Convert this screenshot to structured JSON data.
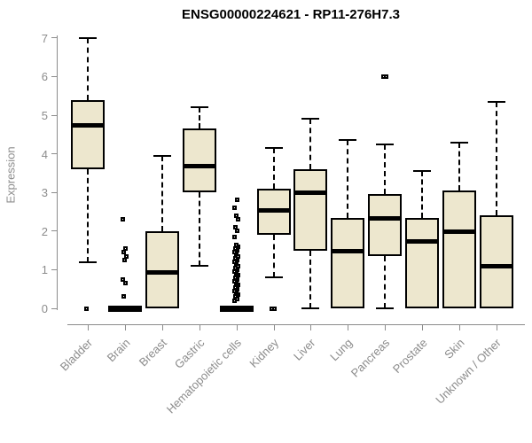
{
  "chart_data": {
    "type": "boxplot",
    "title": "ENSG00000224621 - RP11-276H7.3",
    "ylabel": "Expression",
    "xlabel": "",
    "ylim": [
      0,
      7
    ],
    "yticks": [
      0,
      1,
      2,
      3,
      4,
      5,
      6,
      7
    ],
    "grid": "off",
    "legend": "none",
    "categories": [
      "Bladder",
      "Brain",
      "Breast",
      "Gastric",
      "Hematopoietic cells",
      "Kidney",
      "Liver",
      "Lung",
      "Pancreas",
      "Prostate",
      "Skin",
      "Unknown / Other"
    ],
    "series": [
      {
        "name": "Bladder",
        "low": 1.2,
        "q1": 3.6,
        "median": 4.75,
        "q3": 5.4,
        "high": 7.0,
        "outliers": [
          0
        ]
      },
      {
        "name": "Brain",
        "low": 0,
        "q1": 0,
        "median": 0,
        "q3": 0,
        "high": 0,
        "outliers": [
          2.3,
          1.55,
          1.45,
          1.35,
          1.25,
          0.75,
          0.65,
          0.3
        ]
      },
      {
        "name": "Breast",
        "low": 0,
        "q1": 0,
        "median": 0.95,
        "q3": 2.0,
        "high": 3.95,
        "outliers": []
      },
      {
        "name": "Gastric",
        "low": 1.1,
        "q1": 3.0,
        "median": 3.7,
        "q3": 4.65,
        "high": 5.2,
        "outliers": []
      },
      {
        "name": "Hematopoietic cells",
        "low": 0,
        "q1": 0,
        "median": 0,
        "q3": 0,
        "high": 0,
        "outliers": [
          0.2,
          0.25,
          0.3,
          0.35,
          0.4,
          0.45,
          0.5,
          0.55,
          0.6,
          0.65,
          0.7,
          0.75,
          0.8,
          0.85,
          0.9,
          0.95,
          1.0,
          1.05,
          1.1,
          1.15,
          1.2,
          1.25,
          1.3,
          1.35,
          1.4,
          1.45,
          1.5,
          1.55,
          1.6,
          1.65,
          1.85,
          2.0,
          2.1,
          2.3,
          2.4,
          2.6,
          2.8
        ]
      },
      {
        "name": "Kidney",
        "low": 0.8,
        "q1": 1.9,
        "median": 2.55,
        "q3": 3.1,
        "high": 4.15,
        "outliers": [
          0,
          0
        ]
      },
      {
        "name": "Liver",
        "low": 0,
        "q1": 1.5,
        "median": 3.0,
        "q3": 3.6,
        "high": 4.9,
        "outliers": []
      },
      {
        "name": "Lung",
        "low": 0,
        "q1": 0,
        "median": 1.5,
        "q3": 2.35,
        "high": 4.35,
        "outliers": []
      },
      {
        "name": "Pancreas",
        "low": 0,
        "q1": 1.35,
        "median": 2.35,
        "q3": 2.95,
        "high": 4.25,
        "outliers": [
          6.0,
          6.0
        ]
      },
      {
        "name": "Prostate",
        "low": 0,
        "q1": 0,
        "median": 1.75,
        "q3": 2.35,
        "high": 3.55,
        "outliers": []
      },
      {
        "name": "Skin",
        "low": 0,
        "q1": 0,
        "median": 2.0,
        "q3": 3.05,
        "high": 4.3,
        "outliers": []
      },
      {
        "name": "Unknown / Other",
        "low": 0,
        "q1": 0,
        "median": 1.1,
        "q3": 2.4,
        "high": 5.35,
        "outliers": []
      }
    ],
    "colors": {
      "box_fill": "#EDE7CE",
      "box_border": "#000000",
      "median": "#000000",
      "whisker": "#000000",
      "axis": "#8C8C8C",
      "tick_label": "#8C8C8C",
      "title": "#000000",
      "background": "#FFFFFF"
    }
  }
}
